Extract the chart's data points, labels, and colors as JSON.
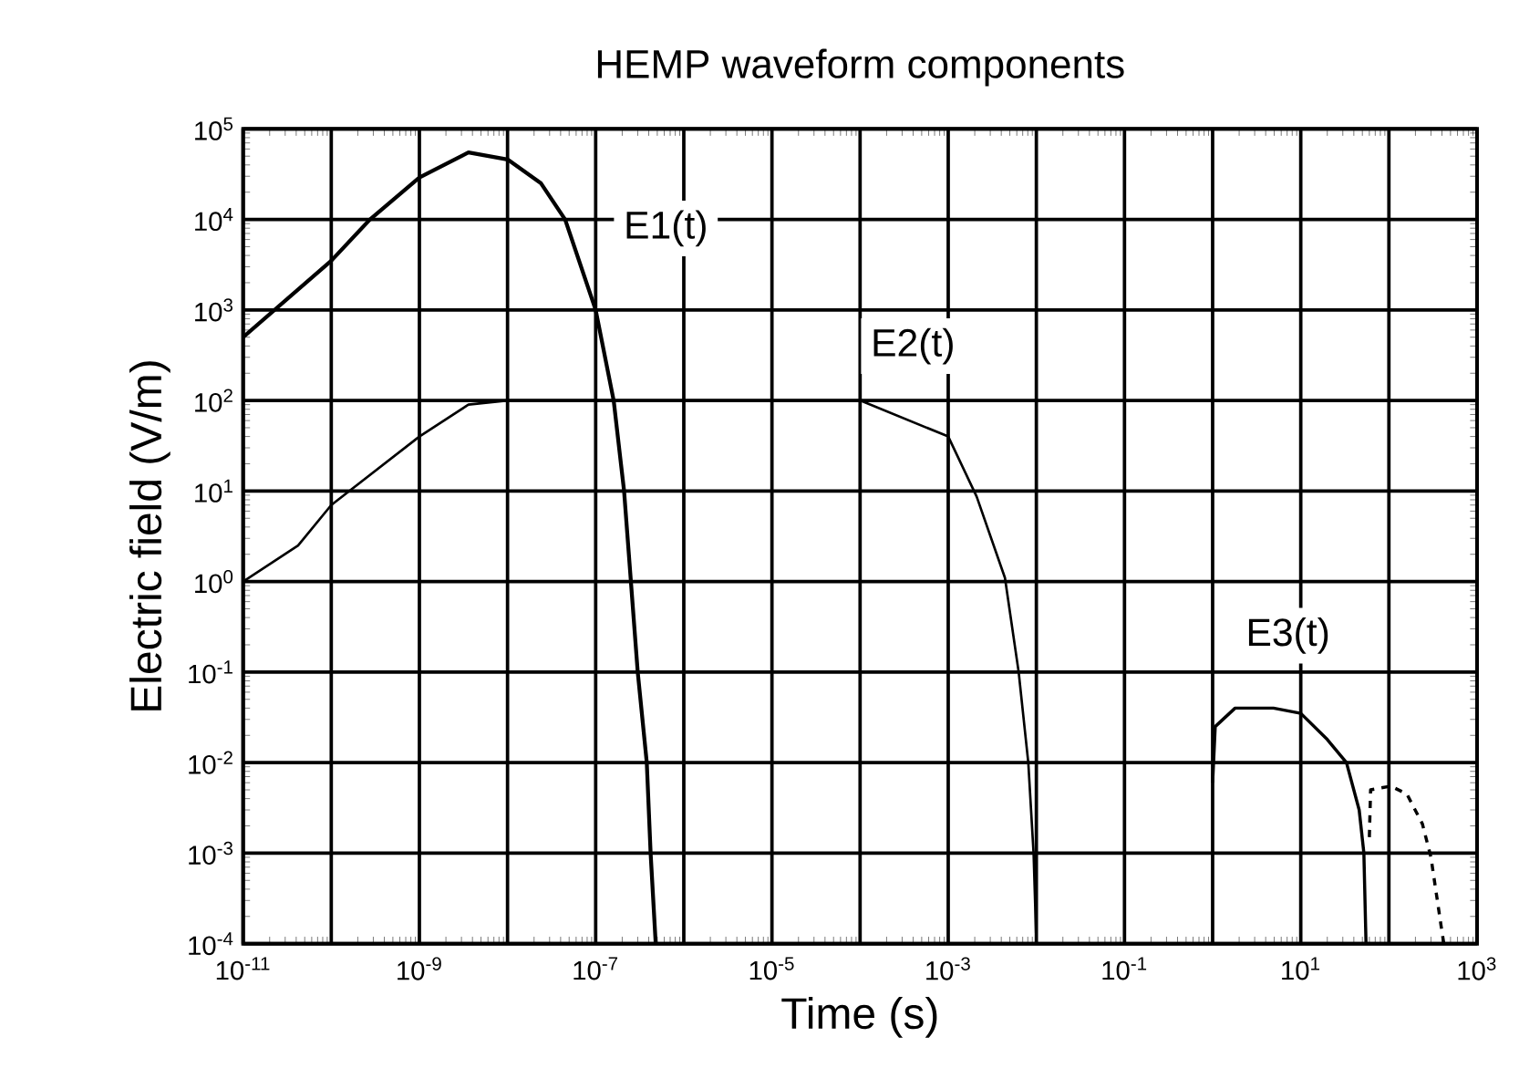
{
  "chart_data": {
    "type": "line",
    "title": "HEMP waveform components",
    "xlabel": "Time (s)",
    "ylabel": "Electric field (V/m)",
    "log": "xy",
    "grid": true,
    "xlim": [
      1e-11,
      1000
    ],
    "ylim": [
      0.0001,
      100000
    ],
    "xticks": [
      {
        "value": 1e-11,
        "label": "10$^{-11}$"
      },
      {
        "value": 1e-10,
        "label": null
      },
      {
        "value": 1e-09,
        "label": "10$^{-9}$"
      },
      {
        "value": 1e-08,
        "label": null
      },
      {
        "value": 1e-07,
        "label": "10$^{-7}$"
      },
      {
        "value": 1e-06,
        "label": null
      },
      {
        "value": 1e-05,
        "label": "10$^{-5}$"
      },
      {
        "value": 0.0001,
        "label": null
      },
      {
        "value": 0.001,
        "label": "10$^{-3}$"
      },
      {
        "value": 0.01,
        "label": null
      },
      {
        "value": 0.1,
        "label": "10$^{-1}$"
      },
      {
        "value": 1,
        "label": null
      },
      {
        "value": 10,
        "label": "10$^{1}$"
      },
      {
        "value": 100,
        "label": null
      },
      {
        "value": 1000,
        "label": "10$^{3}$"
      }
    ],
    "yticks": [
      {
        "value": 0.0001,
        "label": "10$^{-4}$"
      },
      {
        "value": 0.001,
        "label": "10$^{-3}$"
      },
      {
        "value": 0.01,
        "label": "10$^{-2}$"
      },
      {
        "value": 0.1,
        "label": "10$^{-1}$"
      },
      {
        "value": 1,
        "label": "10$^{0}$"
      },
      {
        "value": 10,
        "label": "10$^{1}$"
      },
      {
        "value": 100,
        "label": "10$^{2}$"
      },
      {
        "value": 1000,
        "label": "10$^{3}$"
      },
      {
        "value": 10000,
        "label": "10$^{4}$"
      },
      {
        "value": 100000,
        "label": "10$^{5}$"
      }
    ],
    "series": [
      {
        "name": "E1(t)",
        "color": "#000000",
        "x": [
          1e-11,
          1e-10,
          2.75e-10,
          1e-09,
          3.6e-09,
          1e-08,
          2.4e-08,
          4.5e-08,
          1e-07,
          1.6e-07,
          2.1e-07,
          3e-07,
          3.8e-07,
          4.2e-07,
          4.8e-07
        ],
        "values": [
          500,
          3500,
          10000,
          29000,
          55000,
          46000,
          25000,
          10000,
          1000,
          100,
          10,
          0.1,
          0.01,
          0.001,
          0.0001
        ]
      },
      {
        "name": "E2(t)",
        "color": "#000000",
        "x": [
          1e-11,
          4.2e-11,
          1e-10,
          1e-09,
          3.6e-09,
          1e-08,
          0.0001,
          0.001,
          0.0021,
          0.0044,
          0.0063,
          0.0081,
          0.0093,
          0.01
        ],
        "values": [
          1,
          2.5,
          7,
          40,
          90,
          100,
          100,
          40,
          8.7,
          1.1,
          0.1,
          0.01,
          0.001,
          0.0001
        ]
      },
      {
        "name": "E3(t)",
        "color": "#000000",
        "x": [
          1,
          1.07,
          1.8,
          4.9,
          10,
          20,
          33,
          46,
          52,
          55
        ],
        "values": [
          0.006,
          0.025,
          0.04,
          0.04,
          0.035,
          0.018,
          0.01,
          0.003,
          0.001,
          0.0001
        ]
      },
      {
        "color": "#000000",
        "line_style": "dashed",
        "x": [
          60,
          62,
          105,
          160,
          240,
          300,
          390,
          420
        ],
        "values": [
          0.0015,
          0.005,
          0.0055,
          0.0045,
          0.0021,
          0.0009,
          0.00016,
          0.0001
        ]
      }
    ]
  }
}
